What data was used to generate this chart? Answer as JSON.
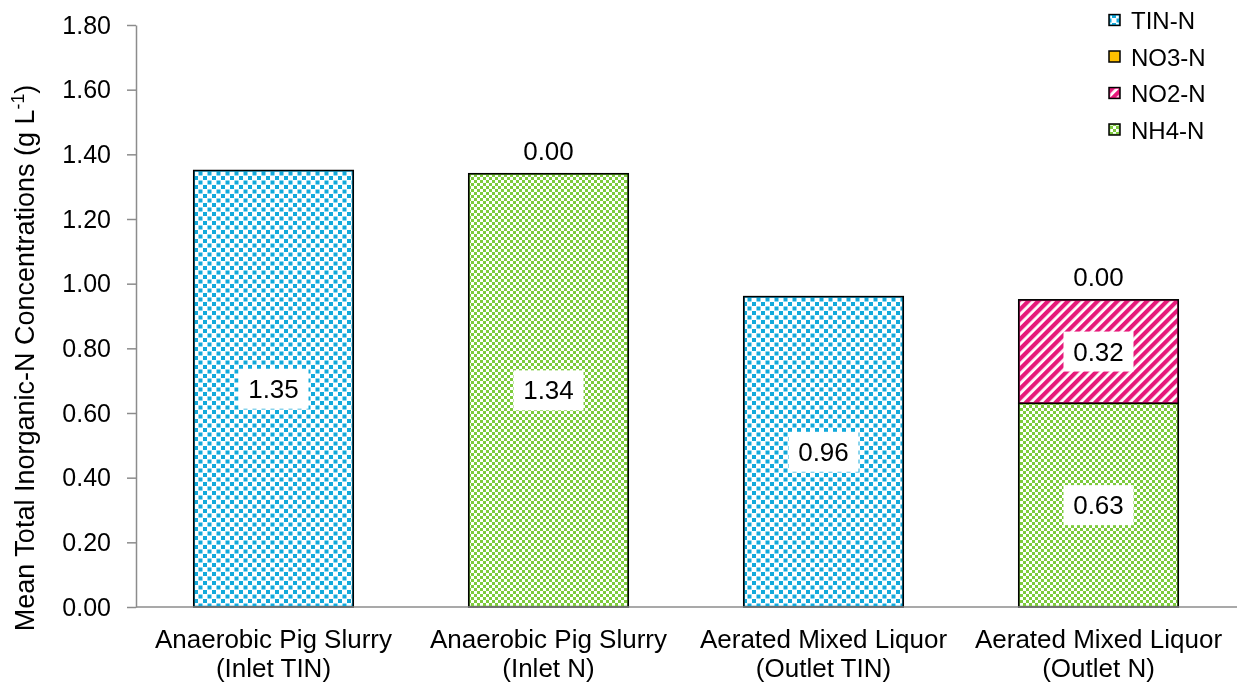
{
  "chart_data": {
    "type": "bar",
    "stacked": true,
    "ylabel": "Mean Total Inorganic-N Concentrations (g L$^{-1}$)",
    "categories": [
      "Anaerobic Pig Slurry\n(Inlet TIN)",
      "Anaerobic Pig Slurry\n(Inlet N)",
      "Aerated Mixed Liquor\n(Outlet TIN)",
      "Aerated Mixed Liquor\n(Outlet N)"
    ],
    "series": [
      {
        "name": "NH4-N",
        "color": "#7dcb3c",
        "values": [
          null,
          1.34,
          null,
          0.63
        ],
        "value_labels": [
          null,
          "1.34",
          null,
          "0.63"
        ]
      },
      {
        "name": "NO2-N",
        "color": "#e6197a",
        "values": [
          null,
          null,
          null,
          0.32
        ],
        "value_labels": [
          null,
          null,
          null,
          "0.32"
        ]
      },
      {
        "name": "NO3-N",
        "color": "#ffc000",
        "values": [
          null,
          0.0,
          null,
          0.0
        ],
        "value_labels": [
          null,
          "0.00",
          null,
          "0.00"
        ]
      },
      {
        "name": "TIN-N",
        "color": "#12a9db",
        "values": [
          1.35,
          null,
          0.96,
          null
        ],
        "value_labels": [
          "1.35",
          null,
          "0.96",
          null
        ]
      }
    ],
    "ylim": [
      0,
      1.8
    ],
    "yticks": [
      {
        "value": 0,
        "label": "0.00"
      },
      {
        "value": 0.2,
        "label": "0.20"
      },
      {
        "value": 0.4,
        "label": "0.40"
      },
      {
        "value": 0.6,
        "label": "0.60"
      },
      {
        "value": 0.8,
        "label": "0.80"
      },
      {
        "value": 1.0,
        "label": "1.00"
      },
      {
        "value": 1.2,
        "label": "1.20"
      },
      {
        "value": 1.4,
        "label": "1.40"
      },
      {
        "value": 1.6,
        "label": "1.60"
      },
      {
        "value": 1.8,
        "label": "1.80"
      }
    ],
    "legend": "top right"
  }
}
